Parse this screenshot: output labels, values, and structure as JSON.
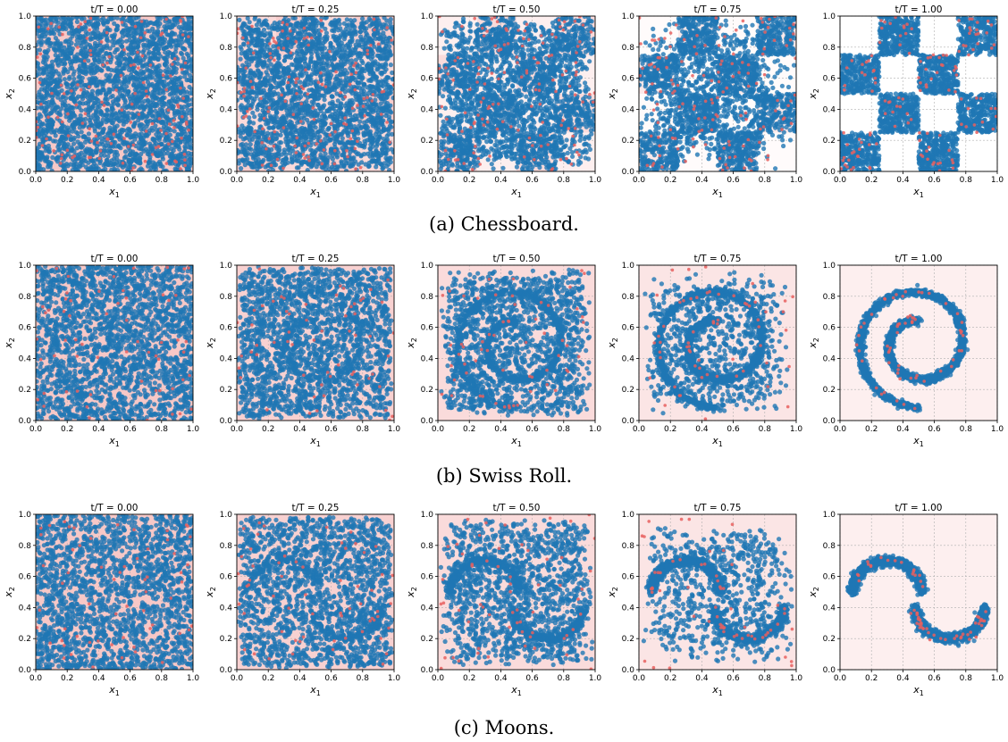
{
  "figure_captions": [
    "(a) Chessboard.",
    "(b) Swiss Roll.",
    "(c) Moons."
  ],
  "colors": {
    "points": "#1f77b4",
    "density": "#e8605f",
    "grid": "#b0b0b0"
  },
  "chart_data": [
    {
      "type": "scatter",
      "dataset": "chessboard",
      "caption": "(a) Chessboard.",
      "subplot_titles": [
        "t/T = 0.00",
        "t/T = 0.25",
        "t/T = 0.50",
        "t/T = 0.75",
        "t/T = 1.00"
      ],
      "t_over_T": [
        0.0,
        0.25,
        0.5,
        0.75,
        1.0
      ],
      "xlabel": "x_1",
      "ylabel": "x_2",
      "xlim": [
        0.0,
        1.0
      ],
      "ylim": [
        0.0,
        1.0
      ],
      "xticks": [
        "0.0",
        "0.2",
        "0.4",
        "0.6",
        "0.8",
        "1.0"
      ],
      "yticks": [
        "0.0",
        "0.2",
        "0.4",
        "0.6",
        "0.8",
        "1.0"
      ],
      "grid": true,
      "target_description": "points fill alternating 0.25-wide squares: columns [0,0.25] and [0.5,0.75] on rows [0,0.25] and [0.5,0.75]; columns [0.25,0.5] and [0.75,1] on rows [0.25,0.5] and [0.75,1]"
    },
    {
      "type": "scatter",
      "dataset": "swiss_roll",
      "caption": "(b) Swiss Roll.",
      "subplot_titles": [
        "t/T = 0.00",
        "t/T = 0.25",
        "t/T = 0.50",
        "t/T = 0.75",
        "t/T = 1.00"
      ],
      "t_over_T": [
        0.0,
        0.25,
        0.5,
        0.75,
        1.0
      ],
      "xlabel": "x_1",
      "ylabel": "x_2",
      "xlim": [
        0.0,
        1.0
      ],
      "ylim": [
        0.0,
        1.0
      ],
      "xticks": [
        "0.0",
        "0.2",
        "0.4",
        "0.6",
        "0.8",
        "1.0"
      ],
      "yticks": [
        "0.0",
        "0.2",
        "0.4",
        "0.6",
        "0.8",
        "1.0"
      ],
      "grid": true,
      "target_description": "spiral centered near (0.5, 0.5) with outer radius about 0.42"
    },
    {
      "type": "scatter",
      "dataset": "moons",
      "caption": "(c) Moons.",
      "subplot_titles": [
        "t/T = 0.00",
        "t/T = 0.25",
        "t/T = 0.50",
        "t/T = 0.75",
        "t/T = 1.00"
      ],
      "t_over_T": [
        0.0,
        0.25,
        0.5,
        0.75,
        1.0
      ],
      "xlabel": "x_1",
      "ylabel": "x_2",
      "xlim": [
        0.0,
        1.0
      ],
      "ylim": [
        0.0,
        1.0
      ],
      "xticks": [
        "0.0",
        "0.2",
        "0.4",
        "0.6",
        "0.8",
        "1.0"
      ],
      "yticks": [
        "0.0",
        "0.2",
        "0.4",
        "0.6",
        "0.8",
        "1.0"
      ],
      "grid": true,
      "target_description": "two interleaved half-moons: upper arc centered (0.3, 0.5) peaking at y about 0.7, lower arc centered (0.7, 0.4) bottoming at y about 0.2"
    }
  ]
}
